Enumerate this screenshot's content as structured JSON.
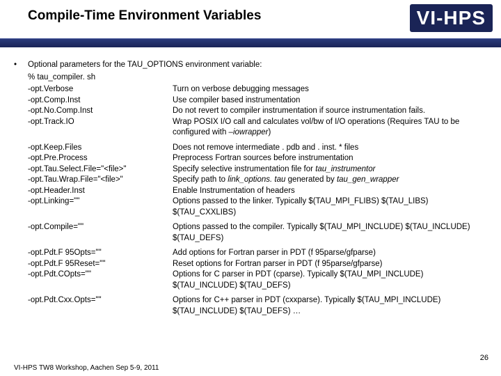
{
  "header": {
    "title": "Compile-Time Environment Variables",
    "logo_text": "VI-HPS"
  },
  "intro": {
    "line1": "Optional parameters for the TAU_OPTIONS environment variable:",
    "line2": "% tau_compiler. sh"
  },
  "options": [
    {
      "flag": "-opt.Verbose",
      "desc": "Turn on verbose debugging messages"
    },
    {
      "flag": "-opt.Comp.Inst",
      "desc": "Use compiler based instrumentation"
    },
    {
      "flag": "-opt.No.Comp.Inst",
      "desc": "Do not revert to compiler instrumentation if source instrumentation fails."
    },
    {
      "flag": "-opt.Track.IO",
      "desc": "Wrap POSIX I/O call and calculates vol/bw of I/O operations (Requires TAU to be configured with –iowrapper)",
      "italic_tail": "–iowrapper)"
    },
    {
      "flag": "-opt.Keep.Files",
      "desc": "Does not remove intermediate . pdb and . inst. * files"
    },
    {
      "flag": "-opt.Pre.Process",
      "desc": "Preprocess Fortran sources before instrumentation"
    },
    {
      "flag": "-opt.Tau.Select.File=\"<file>\"",
      "desc": "Specify selective instrumentation file for tau_instrumentor",
      "italic_tail": "tau_instrumentor"
    },
    {
      "flag": "-opt.Tau.Wrap.File=\"<file>\"",
      "desc": "Specify path to link_options. tau generated by tau_gen_wrapper",
      "italic_parts": [
        "link_options. tau",
        "tau_gen_wrapper"
      ]
    },
    {
      "flag": "-opt.Header.Inst",
      "desc": "Enable Instrumentation of headers"
    },
    {
      "flag": "-opt.Linking=\"\"",
      "desc": "Options passed to the linker. Typically $(TAU_MPI_FLIBS) $(TAU_LIBS) $(TAU_CXXLIBS)"
    },
    {
      "flag": "-opt.Compile=\"\"",
      "desc": "Options passed to the compiler. Typically $(TAU_MPI_INCLUDE) $(TAU_INCLUDE) $(TAU_DEFS)"
    },
    {
      "flag": "-opt.Pdt.F 95Opts=\"\"",
      "desc": "Add options for Fortran parser in PDT (f 95parse/gfparse)"
    },
    {
      "flag": "-opt.Pdt.F 95Reset=\"\"",
      "desc": "Reset options for Fortran parser in PDT (f 95parse/gfparse)"
    },
    {
      "flag": "-opt.Pdt.COpts=\"\"",
      "desc": "Options for C parser in PDT (cparse). Typically $(TAU_MPI_INCLUDE) $(TAU_INCLUDE) $(TAU_DEFS)"
    },
    {
      "flag": "-opt.Pdt.Cxx.Opts=\"\"",
      "desc": "Options for C++ parser in PDT (cxxparse). Typically $(TAU_MPI_INCLUDE) $(TAU_INCLUDE) $(TAU_DEFS) …"
    }
  ],
  "footer": {
    "text": "VI-HPS TW8 Workshop, Aachen Sep 5-9, 2011",
    "page": "26"
  },
  "colors": {
    "strip": "#1a2456",
    "text": "#000000",
    "bg": "#ffffff"
  }
}
